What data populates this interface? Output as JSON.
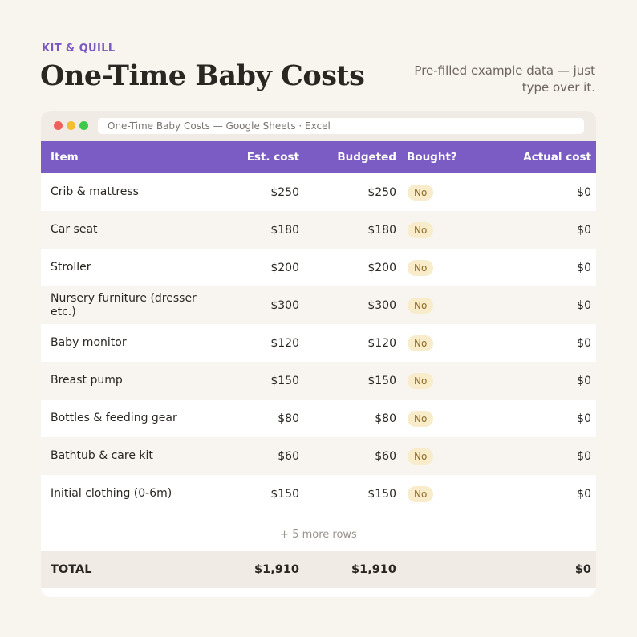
{
  "brand": "KIT & QUILL",
  "title": "One-Time Baby Costs",
  "note": "Pre-filled example data — just type over it.",
  "window": {
    "address": "One-Time Baby Costs — Google Sheets · Excel"
  },
  "table": {
    "headers": [
      "Item",
      "Est. cost",
      "Budgeted",
      "Bought?",
      "Actual cost"
    ],
    "rows": [
      {
        "item": "Crib & mattress",
        "est": "$250",
        "budgeted": "$250",
        "bought": "No",
        "actual": "$0"
      },
      {
        "item": "Car seat",
        "est": "$180",
        "budgeted": "$180",
        "bought": "No",
        "actual": "$0"
      },
      {
        "item": "Stroller",
        "est": "$200",
        "budgeted": "$200",
        "bought": "No",
        "actual": "$0"
      },
      {
        "item": "Nursery furniture (dresser etc.)",
        "est": "$300",
        "budgeted": "$300",
        "bought": "No",
        "actual": "$0"
      },
      {
        "item": "Baby monitor",
        "est": "$120",
        "budgeted": "$120",
        "bought": "No",
        "actual": "$0"
      },
      {
        "item": "Breast pump",
        "est": "$150",
        "budgeted": "$150",
        "bought": "No",
        "actual": "$0"
      },
      {
        "item": "Bottles & feeding gear",
        "est": "$80",
        "budgeted": "$80",
        "bought": "No",
        "actual": "$0"
      },
      {
        "item": "Bathtub & care kit",
        "est": "$60",
        "budgeted": "$60",
        "bought": "No",
        "actual": "$0"
      },
      {
        "item": "Initial clothing (0-6m)",
        "est": "$150",
        "budgeted": "$150",
        "bought": "No",
        "actual": "$0"
      }
    ],
    "more_rows": "+ 5 more rows",
    "total": {
      "label": "TOTAL",
      "est": "$1,910",
      "budgeted": "$1,910",
      "actual": "$0"
    }
  },
  "colors": {
    "accent": "#7b5cc4",
    "background": "#f8f4ee",
    "pill": "#f9eccb"
  }
}
